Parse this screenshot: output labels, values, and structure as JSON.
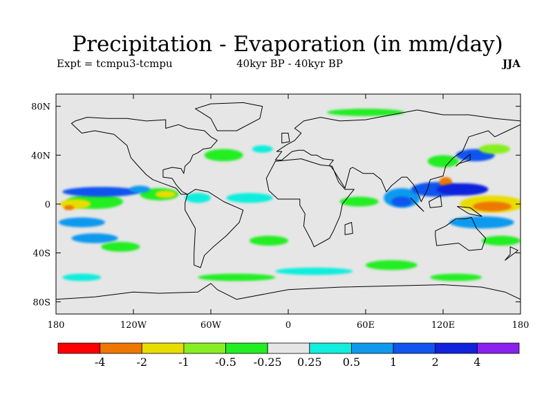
{
  "title": "Precipitation - Evaporation (in mm/day)",
  "subtitle_left": "Expt = tcmpu3-tcmpu",
  "subtitle_center": "40kyr BP - 40kyr BP",
  "season": "JJA",
  "axes": {
    "lat_ticks": [
      "80N",
      "40N",
      "0",
      "40S",
      "80S"
    ],
    "lon_ticks": [
      "180",
      "120W",
      "60W",
      "0",
      "60E",
      "120E",
      "180"
    ],
    "lon_range": [
      -180,
      180
    ],
    "lat_range": [
      -90,
      90
    ]
  },
  "colorbar": {
    "colors": [
      "#ff0000",
      "#ee7700",
      "#e8dd00",
      "#88ee22",
      "#22ee22",
      "#e6e6e6",
      "#11eedd",
      "#1199ee",
      "#1155ee",
      "#1122dd",
      "#8822ee"
    ],
    "labels": [
      "-4",
      "-2",
      "-1",
      "-0.5",
      "-0.25",
      "0.25",
      "0.5",
      "1",
      "2",
      "4"
    ]
  },
  "colors": {
    "ocean_background": "#e6e6e6",
    "coastline": "#000000"
  },
  "fields": [
    {
      "lon": -150,
      "lat": 2,
      "rx": 22,
      "ry": 6,
      "color": "#22ee22"
    },
    {
      "lon": -165,
      "lat": 0,
      "rx": 12,
      "ry": 4,
      "color": "#e8dd00"
    },
    {
      "lon": -170,
      "lat": -3,
      "rx": 4,
      "ry": 2,
      "color": "#ee7700"
    },
    {
      "lon": -145,
      "lat": 10,
      "rx": 30,
      "ry": 4,
      "color": "#1155ee"
    },
    {
      "lon": -160,
      "lat": -15,
      "rx": 18,
      "ry": 4,
      "color": "#1199ee"
    },
    {
      "lon": -150,
      "lat": -28,
      "rx": 18,
      "ry": 4,
      "color": "#1199ee"
    },
    {
      "lon": -130,
      "lat": -35,
      "rx": 15,
      "ry": 4,
      "color": "#22ee22"
    },
    {
      "lon": -100,
      "lat": 8,
      "rx": 15,
      "ry": 5,
      "color": "#22ee22"
    },
    {
      "lon": -95,
      "lat": 8,
      "rx": 8,
      "ry": 3,
      "color": "#e8dd00"
    },
    {
      "lon": -115,
      "lat": 12,
      "rx": 8,
      "ry": 3,
      "color": "#1199ee"
    },
    {
      "lon": -70,
      "lat": 5,
      "rx": 10,
      "ry": 4,
      "color": "#11eedd"
    },
    {
      "lon": -50,
      "lat": 40,
      "rx": 15,
      "ry": 5,
      "color": "#22ee22"
    },
    {
      "lon": -30,
      "lat": 5,
      "rx": 18,
      "ry": 4,
      "color": "#11eedd"
    },
    {
      "lon": -15,
      "lat": -30,
      "rx": 15,
      "ry": 4,
      "color": "#22ee22"
    },
    {
      "lon": -40,
      "lat": -60,
      "rx": 30,
      "ry": 3,
      "color": "#22ee22"
    },
    {
      "lon": -160,
      "lat": -60,
      "rx": 15,
      "ry": 3,
      "color": "#11eedd"
    },
    {
      "lon": 20,
      "lat": -55,
      "rx": 30,
      "ry": 3,
      "color": "#11eedd"
    },
    {
      "lon": 80,
      "lat": -50,
      "rx": 20,
      "ry": 4,
      "color": "#22ee22"
    },
    {
      "lon": 130,
      "lat": -60,
      "rx": 20,
      "ry": 3,
      "color": "#22ee22"
    },
    {
      "lon": 55,
      "lat": 2,
      "rx": 15,
      "ry": 4,
      "color": "#22ee22"
    },
    {
      "lon": 88,
      "lat": 5,
      "rx": 14,
      "ry": 8,
      "color": "#1199ee"
    },
    {
      "lon": 88,
      "lat": 2,
      "rx": 8,
      "ry": 4,
      "color": "#1155ee"
    },
    {
      "lon": 115,
      "lat": 12,
      "rx": 20,
      "ry": 6,
      "color": "#1155ee"
    },
    {
      "lon": 122,
      "lat": 18,
      "rx": 5,
      "ry": 4,
      "color": "#ee7700"
    },
    {
      "lon": 135,
      "lat": 12,
      "rx": 20,
      "ry": 5,
      "color": "#1122dd"
    },
    {
      "lon": 158,
      "lat": 0,
      "rx": 25,
      "ry": 7,
      "color": "#e8dd00"
    },
    {
      "lon": 158,
      "lat": -2,
      "rx": 15,
      "ry": 4,
      "color": "#ee7700"
    },
    {
      "lon": 150,
      "lat": -15,
      "rx": 25,
      "ry": 5,
      "color": "#1199ee"
    },
    {
      "lon": 165,
      "lat": -30,
      "rx": 15,
      "ry": 4,
      "color": "#22ee22"
    },
    {
      "lon": 120,
      "lat": 35,
      "rx": 12,
      "ry": 5,
      "color": "#22ee22"
    },
    {
      "lon": 145,
      "lat": 40,
      "rx": 15,
      "ry": 5,
      "color": "#1155ee"
    },
    {
      "lon": 160,
      "lat": 45,
      "rx": 12,
      "ry": 4,
      "color": "#88ee22"
    },
    {
      "lon": 60,
      "lat": 75,
      "rx": 30,
      "ry": 3,
      "color": "#22ee22"
    },
    {
      "lon": -20,
      "lat": 45,
      "rx": 8,
      "ry": 3,
      "color": "#11eedd"
    }
  ],
  "land": [
    [
      [
        -168,
        66
      ],
      [
        -160,
        58
      ],
      [
        -150,
        60
      ],
      [
        -135,
        57
      ],
      [
        -125,
        48
      ],
      [
        -122,
        38
      ],
      [
        -117,
        32
      ],
      [
        -110,
        24
      ],
      [
        -105,
        20
      ],
      [
        -95,
        16
      ],
      [
        -87,
        13
      ],
      [
        -83,
        8
      ],
      [
        -78,
        8
      ],
      [
        -82,
        10
      ],
      [
        -87,
        16
      ],
      [
        -90,
        21
      ],
      [
        -97,
        22
      ],
      [
        -97,
        28
      ],
      [
        -90,
        30
      ],
      [
        -83,
        29
      ],
      [
        -81,
        25
      ],
      [
        -80,
        31
      ],
      [
        -76,
        35
      ],
      [
        -74,
        40
      ],
      [
        -70,
        42
      ],
      [
        -66,
        45
      ],
      [
        -60,
        46
      ],
      [
        -55,
        52
      ],
      [
        -60,
        55
      ],
      [
        -65,
        60
      ],
      [
        -78,
        62
      ],
      [
        -85,
        65
      ],
      [
        -95,
        62
      ],
      [
        -95,
        69
      ],
      [
        -110,
        68
      ],
      [
        -125,
        70
      ],
      [
        -140,
        70
      ],
      [
        -156,
        71
      ],
      [
        -165,
        68
      ]
    ],
    [
      [
        -55,
        60
      ],
      [
        -40,
        60
      ],
      [
        -22,
        70
      ],
      [
        -20,
        80
      ],
      [
        -35,
        83
      ],
      [
        -60,
        82
      ],
      [
        -72,
        78
      ],
      [
        -60,
        70
      ]
    ],
    [
      [
        -78,
        8
      ],
      [
        -72,
        12
      ],
      [
        -62,
        10
      ],
      [
        -50,
        2
      ],
      [
        -35,
        -5
      ],
      [
        -38,
        -15
      ],
      [
        -48,
        -26
      ],
      [
        -58,
        -35
      ],
      [
        -65,
        -42
      ],
      [
        -68,
        -52
      ],
      [
        -73,
        -50
      ],
      [
        -73,
        -40
      ],
      [
        -72,
        -20
      ],
      [
        -80,
        -5
      ],
      [
        -80,
        1
      ]
    ],
    [
      [
        -10,
        36
      ],
      [
        -5,
        43
      ],
      [
        -9,
        43
      ],
      [
        -2,
        48
      ],
      [
        5,
        52
      ],
      [
        10,
        58
      ],
      [
        5,
        62
      ],
      [
        12,
        68
      ],
      [
        25,
        71
      ],
      [
        40,
        68
      ],
      [
        60,
        69
      ],
      [
        80,
        73
      ],
      [
        100,
        77
      ],
      [
        120,
        73
      ],
      [
        140,
        73
      ],
      [
        160,
        70
      ],
      [
        180,
        68
      ],
      [
        180,
        65
      ],
      [
        170,
        60
      ],
      [
        160,
        55
      ],
      [
        155,
        60
      ],
      [
        140,
        55
      ],
      [
        135,
        43
      ],
      [
        128,
        38
      ],
      [
        122,
        31
      ],
      [
        120,
        23
      ],
      [
        110,
        20
      ],
      [
        108,
        12
      ],
      [
        103,
        2
      ],
      [
        100,
        10
      ],
      [
        97,
        16
      ],
      [
        92,
        22
      ],
      [
        88,
        22
      ],
      [
        80,
        15
      ],
      [
        76,
        10
      ],
      [
        72,
        20
      ],
      [
        66,
        25
      ],
      [
        58,
        25
      ],
      [
        55,
        27
      ],
      [
        50,
        30
      ],
      [
        48,
        29
      ],
      [
        44,
        13
      ],
      [
        35,
        28
      ],
      [
        32,
        32
      ],
      [
        35,
        36
      ],
      [
        27,
        37
      ],
      [
        22,
        40
      ],
      [
        18,
        40
      ],
      [
        12,
        44
      ],
      [
        8,
        44
      ],
      [
        3,
        43
      ],
      [
        -5,
        36
      ]
    ],
    [
      [
        -17,
        21
      ],
      [
        -10,
        35
      ],
      [
        10,
        37
      ],
      [
        25,
        32
      ],
      [
        34,
        31
      ],
      [
        39,
        18
      ],
      [
        44,
        12
      ],
      [
        51,
        12
      ],
      [
        42,
        0
      ],
      [
        40,
        -10
      ],
      [
        35,
        -22
      ],
      [
        32,
        -28
      ],
      [
        20,
        -35
      ],
      [
        18,
        -30
      ],
      [
        12,
        -18
      ],
      [
        13,
        -8
      ],
      [
        9,
        -1
      ],
      [
        9,
        4
      ],
      [
        -8,
        4
      ],
      [
        -15,
        11
      ]
    ],
    [
      [
        114,
        -22
      ],
      [
        122,
        -18
      ],
      [
        130,
        -12
      ],
      [
        137,
        -12
      ],
      [
        142,
        -11
      ],
      [
        146,
        -20
      ],
      [
        153,
        -28
      ],
      [
        150,
        -37
      ],
      [
        140,
        -38
      ],
      [
        132,
        -32
      ],
      [
        115,
        -34
      ],
      [
        114,
        -26
      ]
    ],
    [
      [
        -180,
        -78
      ],
      [
        -150,
        -76
      ],
      [
        -120,
        -72
      ],
      [
        -100,
        -73
      ],
      [
        -70,
        -72
      ],
      [
        -60,
        -65
      ],
      [
        -55,
        -70
      ],
      [
        -40,
        -78
      ],
      [
        0,
        -70
      ],
      [
        40,
        -68
      ],
      [
        80,
        -67
      ],
      [
        120,
        -66
      ],
      [
        150,
        -68
      ],
      [
        168,
        -72
      ],
      [
        180,
        -78
      ],
      [
        180,
        -90
      ],
      [
        -180,
        -90
      ]
    ],
    [
      [
        49,
        -15
      ],
      [
        50,
        -24
      ],
      [
        44,
        -25
      ],
      [
        44,
        -17
      ]
    ],
    [
      [
        95,
        5
      ],
      [
        105,
        -6
      ],
      [
        101,
        -2
      ]
    ],
    [
      [
        109,
        2
      ],
      [
        118,
        7
      ],
      [
        119,
        -2
      ],
      [
        110,
        -3
      ]
    ],
    [
      [
        131,
        -2
      ],
      [
        141,
        -3
      ],
      [
        150,
        -10
      ],
      [
        140,
        -8
      ]
    ],
    [
      [
        -5,
        50
      ],
      [
        1,
        51
      ],
      [
        0,
        58
      ],
      [
        -5,
        58
      ]
    ],
    [
      [
        130,
        31
      ],
      [
        141,
        41
      ],
      [
        141,
        36
      ],
      [
        132,
        33
      ]
    ],
    [
      [
        172,
        -35
      ],
      [
        178,
        -38
      ],
      [
        168,
        -46
      ],
      [
        172,
        -41
      ]
    ]
  ]
}
